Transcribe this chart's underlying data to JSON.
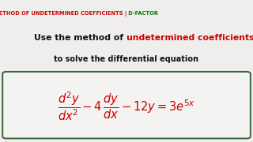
{
  "bg_color": "#f0eeec",
  "title_red": "METHOD OF UNDETERMINED COEFFICIENTS |",
  "title_green": " D-FACTOR",
  "color_red": "#cc0000",
  "color_green": "#007700",
  "color_black": "#111111",
  "line2_black": "Use the method of ",
  "line2_red": "undetermined coefficients",
  "line3": "to solve the differential equation",
  "box_edge_color": "#336633",
  "box_face_color": "#f5f3f1",
  "title_fontsize": 4.8,
  "line2_fontsize": 7.8,
  "line3_fontsize": 7.0,
  "eq_fontsize": 10.5
}
